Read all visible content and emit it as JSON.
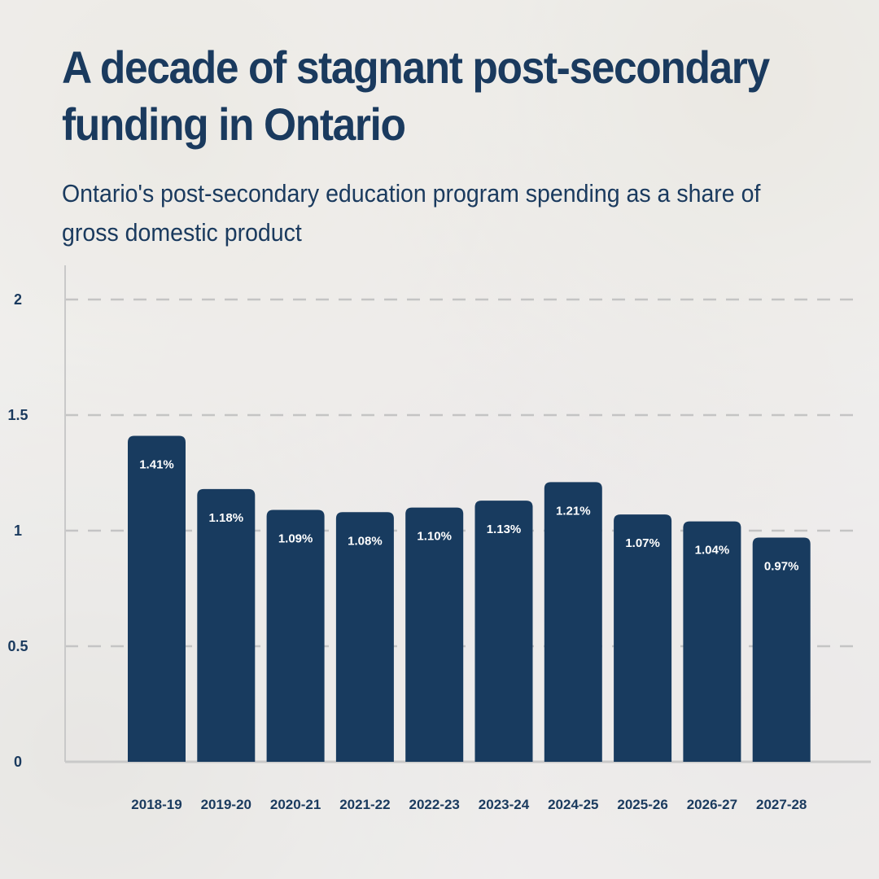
{
  "chart_data": {
    "type": "bar",
    "title": "A decade of stagnant post-secondary funding in Ontario",
    "subtitle": "Ontario's post-secondary education program spending as a share of gross domestic product",
    "categories": [
      "2018-19",
      "2019-20",
      "2020-21",
      "2021-22",
      "2022-23",
      "2023-24",
      "2024-25",
      "2025-26",
      "2026-27",
      "2027-28"
    ],
    "values": [
      1.41,
      1.18,
      1.09,
      1.08,
      1.1,
      1.13,
      1.21,
      1.07,
      1.04,
      0.97
    ],
    "data_labels": [
      "1.41%",
      "1.18%",
      "1.09%",
      "1.08%",
      "1.10%",
      "1.13%",
      "1.21%",
      "1.07%",
      "1.04%",
      "0.97%"
    ],
    "ylim": [
      0,
      2
    ],
    "yticks": [
      0,
      0.5,
      1,
      1.5,
      2
    ],
    "ytick_labels": [
      "0",
      "0.5",
      "1",
      "1.5",
      "2"
    ],
    "xlabel": "",
    "ylabel": "",
    "grid": true,
    "legend": "none",
    "colors": {
      "bar": "#183b5f",
      "text": "#1a3a5e",
      "grid": "#c4c4c4",
      "axis": "#c9c9c9"
    }
  }
}
